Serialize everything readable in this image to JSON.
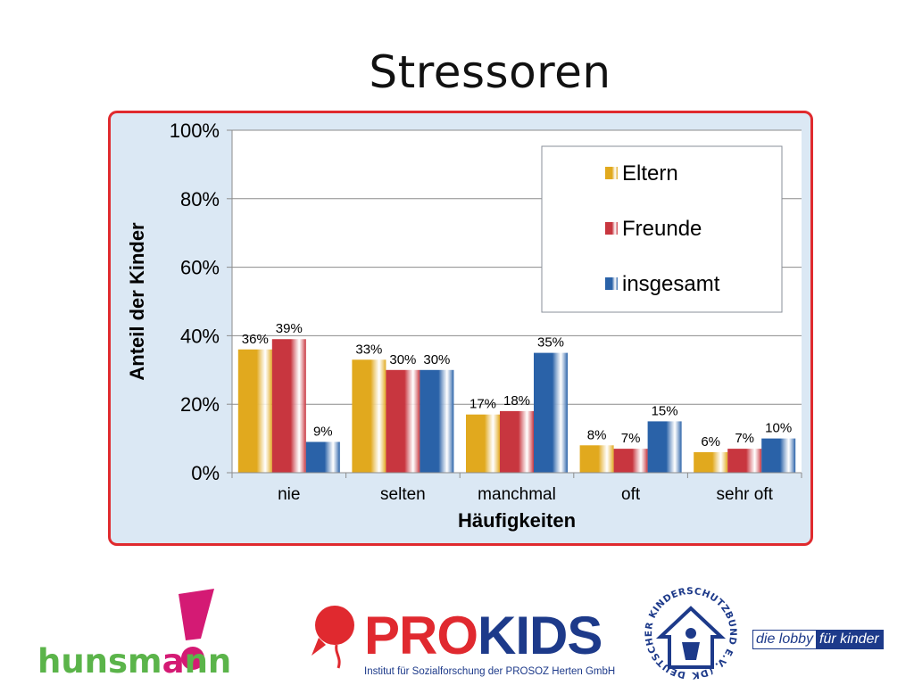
{
  "title": "Stressoren",
  "chart_data": {
    "type": "bar",
    "categories": [
      "nie",
      "selten",
      "manchmal",
      "oft",
      "sehr oft"
    ],
    "series": [
      {
        "name": "Eltern",
        "values": [
          36,
          33,
          17,
          8,
          6
        ],
        "labels": [
          "36%",
          "33%",
          "17%",
          "8%",
          "6%"
        ],
        "color": "#e1a91e"
      },
      {
        "name": "Freunde",
        "values": [
          39,
          30,
          18,
          7,
          7
        ],
        "labels": [
          "39%",
          "30%",
          "18%",
          "7%",
          "7%"
        ],
        "color": "#c8363f"
      },
      {
        "name": "insgesamt",
        "values": [
          9,
          30,
          35,
          15,
          10
        ],
        "labels": [
          "9%",
          "30%",
          "35%",
          "15%",
          "10%"
        ],
        "color": "#2a62a8"
      }
    ],
    "ylim": [
      0,
      100
    ],
    "yticks": [
      "0%",
      "20%",
      "40%",
      "60%",
      "80%",
      "100%"
    ],
    "xlabel": "Häufigkeiten",
    "ylabel": "Anteil der Kinder",
    "legend": "top-right",
    "grid": true
  },
  "logos": {
    "hunsmann": {
      "text_prefix": "hunsm",
      "text_a": "a",
      "text_suffix": "nn"
    },
    "prokids": {
      "pro": "PRO",
      "kids": "KIDS",
      "subtitle": "Institut für Sozialforschung der PROSOZ Herten GmbH"
    },
    "dksb": {
      "ring_text": "DEUTSCHER KINDERSCHUTZBUND E.V. (DKSB)",
      "lobby_a": "die lobby",
      "lobby_b": "für kinder"
    }
  },
  "colors": {
    "frame_border": "#e02a2e",
    "frame_bg": "#dbe8f4",
    "prokids_red": "#e0292f",
    "prokids_blue": "#1d3a8a",
    "hunsmann_green": "#5bb44a",
    "hunsmann_pink": "#d41a74"
  }
}
